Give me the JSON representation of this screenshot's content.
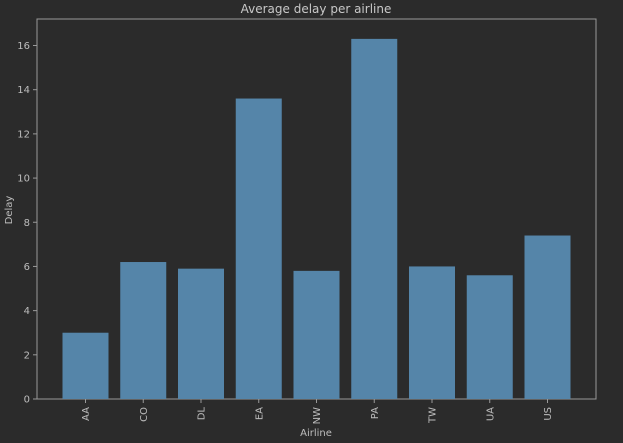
{
  "chart_data": {
    "type": "bar",
    "title": "Average delay per airline",
    "xlabel": "Airline",
    "ylabel": "Delay",
    "categories": [
      "AA",
      "CO",
      "DL",
      "EA",
      "NW",
      "PA",
      "TW",
      "UA",
      "US"
    ],
    "values": [
      3.0,
      6.2,
      5.9,
      13.6,
      5.8,
      16.3,
      6.0,
      5.6,
      7.4
    ],
    "ylim": [
      0,
      17.2
    ],
    "yticks": [
      0,
      2,
      4,
      6,
      8,
      10,
      12,
      14,
      16
    ],
    "grid": false,
    "legend": "none",
    "colors": {
      "background": "#2b2b2b",
      "bar": "#5585a9",
      "axis": "#9a9a9a",
      "text": "#bdbdbd"
    }
  }
}
